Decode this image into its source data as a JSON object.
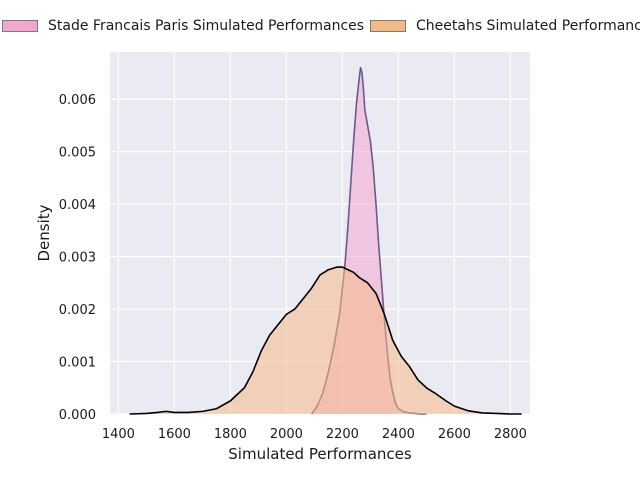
{
  "chart_data": {
    "type": "area",
    "title": "",
    "xlabel": "Simulated Performances",
    "ylabel": "Density",
    "xlim": [
      1370,
      2870
    ],
    "ylim": [
      0,
      0.0069
    ],
    "xticks": [
      1400,
      1600,
      1800,
      2000,
      2200,
      2400,
      2600,
      2800
    ],
    "xtick_labels": [
      "1400",
      "1600",
      "1800",
      "2000",
      "2200",
      "2400",
      "2600",
      "2800"
    ],
    "yticks": [
      0,
      0.001,
      0.002,
      0.003,
      0.004,
      0.005,
      0.006
    ],
    "ytick_labels": [
      "0.000",
      "0.001",
      "0.002",
      "0.003",
      "0.004",
      "0.005",
      "0.006"
    ],
    "grid": true,
    "legend_position": "top-center",
    "series": [
      {
        "name": "Stade Francais Paris Simulated Performances",
        "fill": "#f4a6cf",
        "line": "#6b5a8a",
        "x": [
          2090,
          2110,
          2130,
          2150,
          2170,
          2190,
          2210,
          2220,
          2230,
          2240,
          2250,
          2260,
          2265,
          2270,
          2275,
          2280,
          2290,
          2300,
          2310,
          2320,
          2330,
          2340,
          2350,
          2360,
          2370,
          2380,
          2390,
          2400,
          2420,
          2440,
          2460,
          2480,
          2500
        ],
        "y": [
          0.0,
          0.00015,
          0.0004,
          0.0008,
          0.0013,
          0.0019,
          0.0029,
          0.0036,
          0.0044,
          0.0052,
          0.0059,
          0.0064,
          0.0066,
          0.0065,
          0.0062,
          0.0058,
          0.0055,
          0.0052,
          0.0047,
          0.004,
          0.0032,
          0.0025,
          0.0018,
          0.0012,
          0.0007,
          0.0004,
          0.0002,
          0.0001,
          4e-05,
          2e-05,
          1e-05,
          0.0,
          0.0
        ]
      },
      {
        "name": "Cheetahs Simulated Performances",
        "fill": "#f5b987",
        "line": "#000000",
        "x": [
          1440,
          1500,
          1540,
          1570,
          1600,
          1650,
          1700,
          1750,
          1800,
          1850,
          1880,
          1910,
          1940,
          1970,
          2000,
          2030,
          2060,
          2090,
          2120,
          2150,
          2180,
          2200,
          2220,
          2240,
          2260,
          2290,
          2320,
          2350,
          2380,
          2410,
          2440,
          2470,
          2500,
          2530,
          2570,
          2600,
          2650,
          2700,
          2750,
          2800,
          2840
        ],
        "y": [
          0.0,
          1e-05,
          3e-05,
          5e-05,
          3e-05,
          3e-05,
          5e-05,
          0.0001,
          0.00025,
          0.0005,
          0.0008,
          0.0012,
          0.0015,
          0.0017,
          0.0019,
          0.002,
          0.0022,
          0.0024,
          0.00265,
          0.00275,
          0.0028,
          0.0028,
          0.00275,
          0.0027,
          0.0026,
          0.0025,
          0.0023,
          0.0019,
          0.0014,
          0.0011,
          0.0009,
          0.00065,
          0.0005,
          0.0004,
          0.00025,
          0.00015,
          6e-05,
          2e-05,
          1e-05,
          0.0,
          0.0
        ]
      }
    ]
  }
}
